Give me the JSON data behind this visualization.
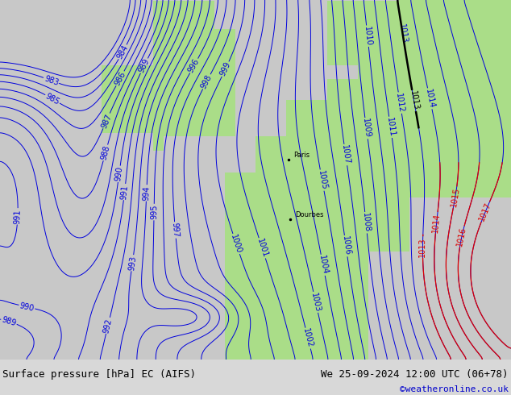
{
  "title_left": "Surface pressure [hPa] EC (AIFS)",
  "title_right": "We 25-09-2024 12:00 UTC (06+78)",
  "credit": "©weatheronline.co.uk",
  "bg_ocean": "#c8c8c8",
  "bg_land": "#aadd88",
  "col_blue": "#0000dd",
  "col_black": "#000000",
  "col_red": "#dd0000",
  "col_gray_outline": "#aaaaaa",
  "bottom_bg": "#d8d8d8",
  "title_color": "#000000",
  "credit_color": "#0000cc",
  "figsize": [
    6.34,
    4.9
  ],
  "dpi": 100,
  "fs_title": 9,
  "fs_credit": 8,
  "fs_label": 7
}
